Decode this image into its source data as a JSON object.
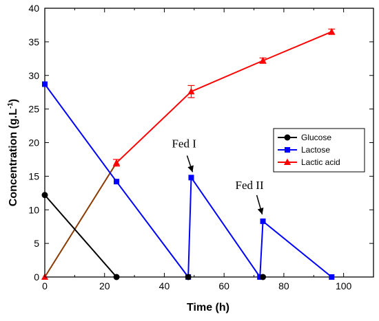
{
  "chart_data": {
    "type": "line",
    "xlabel": "Time (h)",
    "ylabel_main": "Concentration (g.L",
    "ylabel_sup": "-1",
    "ylabel_close": ")",
    "xlim": [
      0,
      110
    ],
    "ylim": [
      0,
      40
    ],
    "x_ticks": [
      0,
      20,
      40,
      60,
      80,
      100
    ],
    "y_ticks": [
      0,
      5,
      10,
      15,
      20,
      25,
      30,
      35,
      40
    ],
    "legend_position": "right-middle",
    "series": [
      {
        "name": "Glucose",
        "color": "#000000",
        "marker": "circle",
        "points": [
          [
            0,
            12.2
          ],
          [
            24,
            0
          ]
        ]
      },
      {
        "name": "Lactose",
        "color": "#0000ff",
        "marker": "square",
        "points": [
          [
            0,
            28.7
          ],
          [
            24,
            14.2
          ],
          [
            48,
            0
          ],
          [
            49,
            14.8
          ],
          [
            72,
            0
          ],
          [
            73,
            8.3
          ],
          [
            96,
            0
          ]
        ]
      },
      {
        "name": "Lactic acid",
        "color": "#ff0000",
        "marker": "triangle",
        "points": [
          [
            0,
            0
          ],
          [
            24,
            17
          ],
          [
            49,
            27.6
          ],
          [
            73,
            32.2
          ],
          [
            96,
            36.5
          ]
        ],
        "errors": [
          0,
          0.5,
          0.9,
          0.4,
          0.4
        ]
      }
    ],
    "first_segment_color": "#8b3a00",
    "extra_markers": [
      {
        "series": "Glucose",
        "x": 48,
        "y": 0
      },
      {
        "series": "Glucose",
        "x": 73,
        "y": 0
      }
    ],
    "annotations": [
      {
        "text": "Fed I",
        "x": 49,
        "y": 14.8
      },
      {
        "text": "Fed II",
        "x": 73,
        "y": 8.3
      }
    ]
  }
}
